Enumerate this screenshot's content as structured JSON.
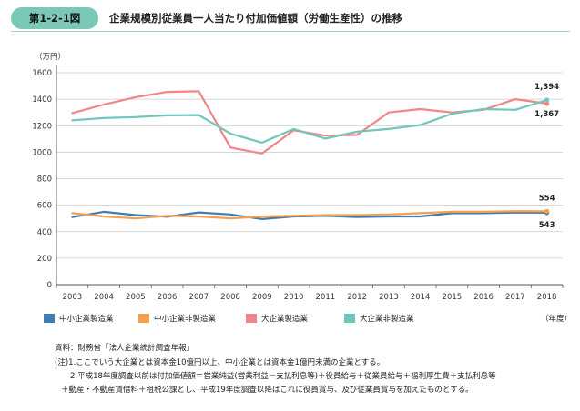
{
  "header": {
    "figure_number": "第1-2-1図",
    "title": "企業規模別従業員一人当たり付加価値額（労働生産性）の推移"
  },
  "chart_data": {
    "type": "line",
    "ylabel": "（万円）",
    "xlabel": "（年度）",
    "x": [
      "2003",
      "2004",
      "2005",
      "2006",
      "2007",
      "2008",
      "2009",
      "2010",
      "2011",
      "2012",
      "2013",
      "2014",
      "2015",
      "2016",
      "2017",
      "2018"
    ],
    "ylim": [
      0,
      1600
    ],
    "yticks": [
      0,
      200,
      400,
      600,
      800,
      1000,
      1200,
      1400,
      1600
    ],
    "ytick_labels": [
      "0",
      "200",
      "400",
      "600",
      "800",
      "1000",
      "1200",
      "1400",
      "1600"
    ],
    "grid": true,
    "legend_position": "bottom",
    "series": [
      {
        "name": "中小企業製造業",
        "color": "#3f7cb3",
        "values": [
          510,
          550,
          525,
          513,
          545,
          530,
          495,
          515,
          520,
          510,
          515,
          515,
          540,
          540,
          545,
          543
        ]
      },
      {
        "name": "中小企業非製造業",
        "color": "#f5a04c",
        "values": [
          540,
          515,
          500,
          520,
          515,
          500,
          515,
          520,
          525,
          525,
          530,
          540,
          550,
          550,
          555,
          554
        ]
      },
      {
        "name": "大企業製造業",
        "color": "#f28587",
        "values": [
          1295,
          1360,
          1415,
          1455,
          1460,
          1035,
          990,
          1165,
          1125,
          1130,
          1300,
          1325,
          1300,
          1320,
          1400,
          1367
        ]
      },
      {
        "name": "大企業非製造業",
        "color": "#6fc6bb",
        "values": [
          1240,
          1258,
          1265,
          1278,
          1280,
          1140,
          1072,
          1175,
          1103,
          1155,
          1175,
          1205,
          1290,
          1325,
          1320,
          1394
        ]
      }
    ],
    "annotations": [
      {
        "text": "1,394",
        "series": "大企業非製造業",
        "x": "2018",
        "value": 1394
      },
      {
        "text": "1,367",
        "series": "大企業製造業",
        "x": "2018",
        "value": 1367
      },
      {
        "text": "554",
        "series": "中小企業非製造業",
        "x": "2018",
        "value": 554
      },
      {
        "text": "543",
        "series": "中小企業製造業",
        "x": "2018",
        "value": 543
      }
    ]
  },
  "notes": {
    "source": "資料：財務省「法人企業統計調査年報」",
    "note1": "(注)1.ここでいう大企業とは資本金10億円以上、中小企業とは資本金1億円未満の企業とする。",
    "note2": "2.平成18年度調査以前は付加価値額＝営業純益(営業利益－支払利息等)＋役員給与＋従業員給与＋福利厚生費＋支払利息等",
    "note2_cont": "＋動産・不動産賃借料＋租税公課とし、平成19年度調査以降はこれに役員賞与、及び従業員賞与を加えたものとする。"
  }
}
